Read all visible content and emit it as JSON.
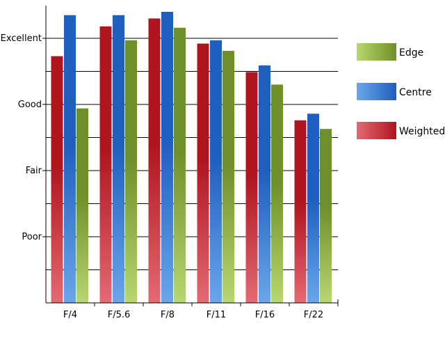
{
  "chart_data": {
    "type": "bar",
    "title": "",
    "xlabel": "",
    "ylabel": "",
    "categories": [
      "F/4",
      "F/5.6",
      "F/8",
      "F/11",
      "F/16",
      "F/22"
    ],
    "y_tick_labels": [
      {
        "label": "Poor",
        "value": 1
      },
      {
        "label": "Fair",
        "value": 2
      },
      {
        "label": "Good",
        "value": 3
      },
      {
        "label": "Excellent",
        "value": 4
      }
    ],
    "ylim": [
      0,
      4
    ],
    "grid": true,
    "legend_position": "right",
    "series": [
      {
        "name": "Weighted",
        "values": [
          3.73,
          4.18,
          4.3,
          3.92,
          3.49,
          2.76
        ],
        "color_dark": "#b0151e",
        "color_light": "#e46a72"
      },
      {
        "name": "Centre",
        "values": [
          4.35,
          4.35,
          4.4,
          3.97,
          3.59,
          2.86
        ],
        "color_dark": "#1f5fbf",
        "color_light": "#6aa6ec"
      },
      {
        "name": "Edge",
        "values": [
          2.94,
          3.97,
          4.16,
          3.81,
          3.3,
          2.63
        ],
        "color_dark": "#6f8f2a",
        "color_light": "#b9d76f"
      }
    ],
    "legend_order": [
      "Edge",
      "Centre",
      "Weighted"
    ]
  }
}
